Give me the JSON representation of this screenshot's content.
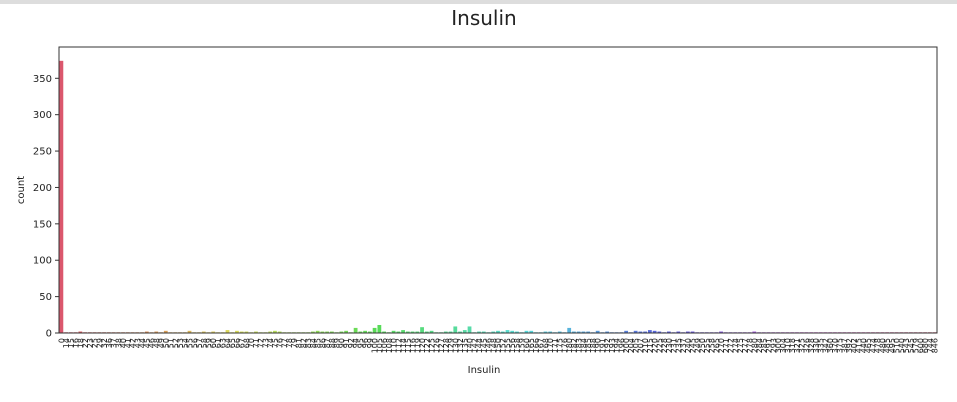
{
  "chart_data": {
    "type": "countplot",
    "title": "Insulin",
    "xlabel": "Insulin",
    "ylabel": "count",
    "palette": "husl",
    "categories": [
      0,
      14,
      15,
      16,
      18,
      22,
      23,
      25,
      29,
      32,
      36,
      37,
      38,
      40,
      41,
      42,
      43,
      44,
      45,
      46,
      48,
      49,
      50,
      51,
      52,
      53,
      54,
      55,
      56,
      57,
      58,
      59,
      60,
      61,
      63,
      64,
      65,
      66,
      67,
      68,
      70,
      71,
      72,
      73,
      74,
      75,
      76,
      77,
      78,
      79,
      81,
      82,
      83,
      84,
      85,
      86,
      87,
      88,
      89,
      90,
      91,
      92,
      94,
      95,
      96,
      99,
      100,
      105,
      106,
      108,
      110,
      112,
      114,
      115,
      116,
      119,
      120,
      122,
      125,
      126,
      127,
      128,
      129,
      130,
      132,
      135,
      140,
      142,
      144,
      145,
      146,
      148,
      150,
      152,
      155,
      156,
      158,
      159,
      160,
      165,
      166,
      167,
      168,
      170,
      171,
      175,
      176,
      180,
      182,
      183,
      184,
      185,
      188,
      190,
      191,
      192,
      193,
      194,
      196,
      200,
      204,
      205,
      207,
      210,
      215,
      220,
      225,
      228,
      230,
      231,
      235,
      237,
      240,
      245,
      249,
      250,
      255,
      258,
      265,
      270,
      271,
      272,
      274,
      275,
      277,
      278,
      280,
      284,
      285,
      291,
      293,
      300,
      304,
      310,
      318,
      321,
      325,
      326,
      328,
      330,
      335,
      342,
      360,
      370,
      375,
      387,
      392,
      402,
      415,
      440,
      465,
      474,
      478,
      480,
      485,
      495,
      510,
      540,
      543,
      545,
      579,
      600,
      680,
      744,
      846
    ],
    "values": [
      374,
      1,
      1,
      1,
      2,
      1,
      1,
      1,
      1,
      1,
      1,
      1,
      1,
      1,
      1,
      1,
      1,
      1,
      2,
      1,
      2,
      1,
      3,
      1,
      1,
      1,
      1,
      3,
      1,
      1,
      2,
      1,
      2,
      1,
      1,
      4,
      1,
      3,
      2,
      2,
      1,
      2,
      1,
      1,
      2,
      3,
      2,
      1,
      1,
      1,
      1,
      1,
      1,
      2,
      3,
      2,
      2,
      2,
      1,
      2,
      3,
      1,
      7,
      2,
      3,
      2,
      7,
      11,
      2,
      1,
      3,
      2,
      4,
      2,
      2,
      2,
      8,
      2,
      3,
      1,
      1,
      2,
      2,
      9,
      2,
      4,
      9,
      1,
      2,
      2,
      1,
      2,
      3,
      2,
      4,
      3,
      2,
      1,
      3,
      3,
      1,
      1,
      2,
      2,
      1,
      2,
      1,
      7,
      2,
      2,
      2,
      2,
      1,
      3,
      1,
      2,
      1,
      1,
      1,
      3,
      1,
      3,
      2,
      2,
      4,
      3,
      2,
      1,
      2,
      1,
      2,
      1,
      2,
      2,
      1,
      1,
      1,
      1,
      1,
      2,
      1,
      1,
      1,
      1,
      1,
      1,
      2,
      1,
      1,
      1,
      1,
      1,
      1,
      1,
      1,
      1,
      1,
      1,
      1,
      1,
      1,
      1,
      1,
      1,
      1,
      1,
      1,
      1,
      1,
      1,
      1,
      1,
      1,
      1,
      1,
      1,
      1,
      1,
      1,
      1,
      1,
      1,
      1,
      1,
      1
    ],
    "ylim": [
      0,
      393
    ],
    "yticks": [
      0,
      50,
      100,
      150,
      200,
      250,
      300,
      350
    ]
  }
}
